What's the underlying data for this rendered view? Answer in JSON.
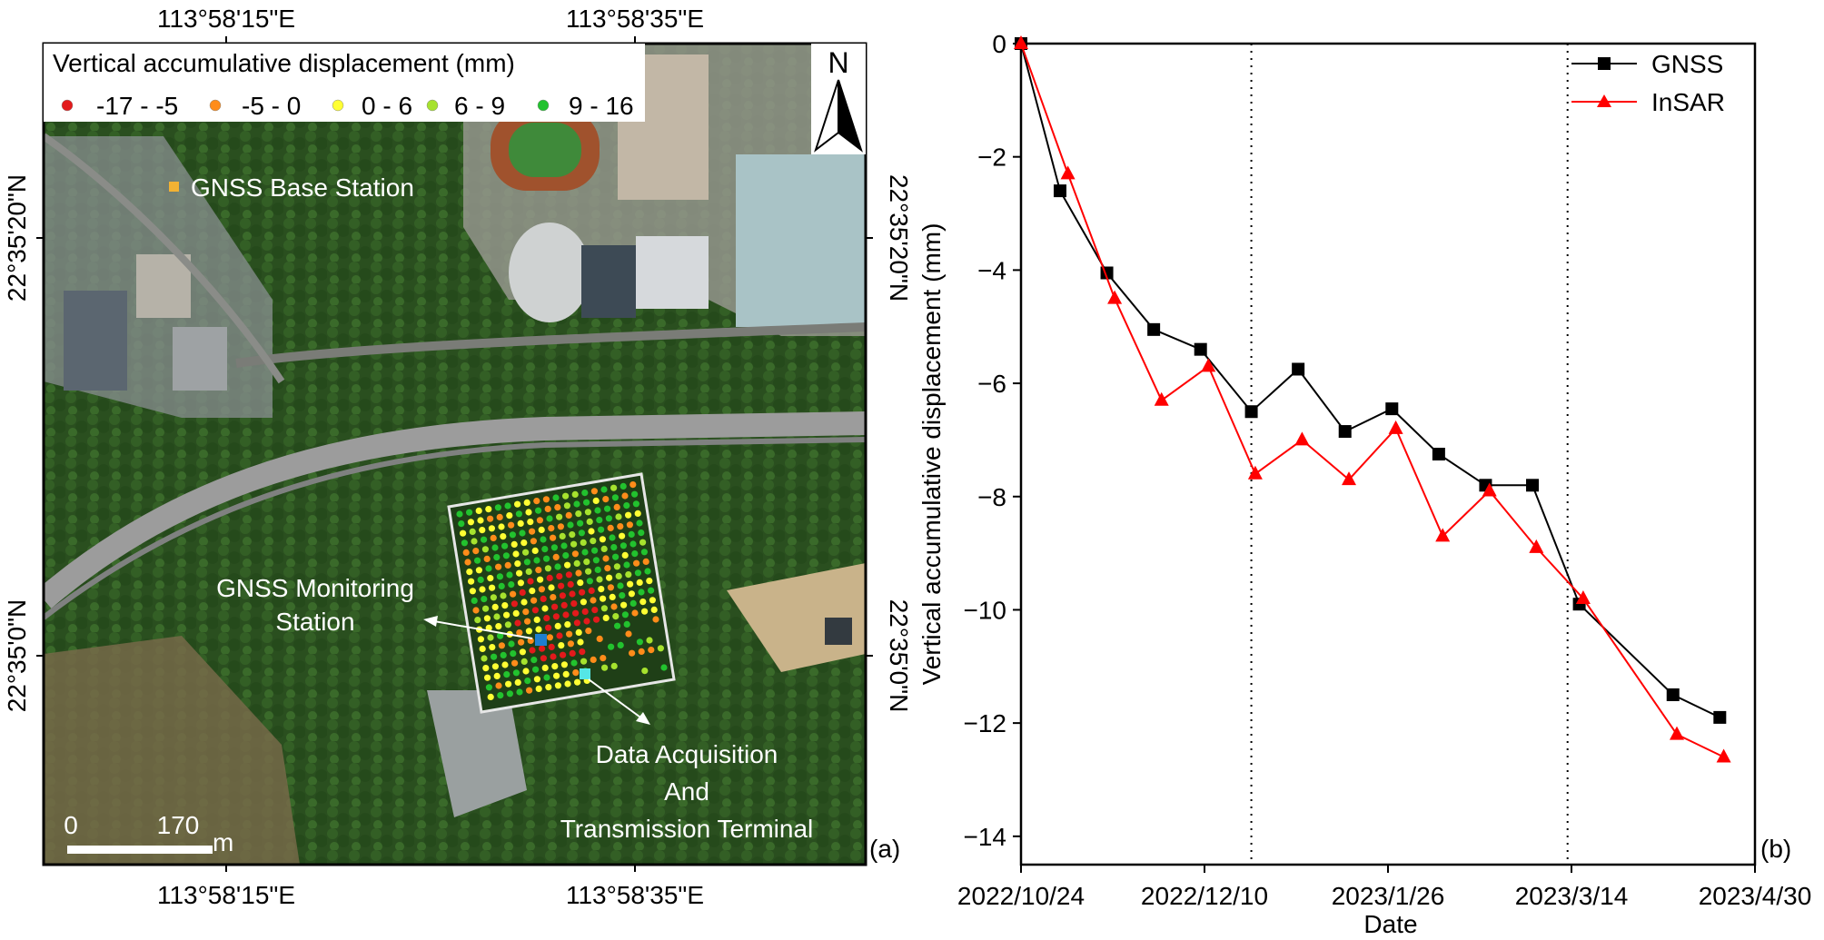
{
  "map": {
    "top_lon_labels": [
      "113°58'15\"E",
      "113°58'35\"E"
    ],
    "bottom_lon_labels": [
      "113°58'15\"E",
      "113°58'35\"E"
    ],
    "left_lat_labels": [
      "22°35'20\"N",
      "22°35'0\"N"
    ],
    "right_lat_labels": [
      "22°35'20\"N",
      "22°35'0\"N"
    ],
    "legend_title": "Vertical accumulative displacement (mm)",
    "legend_items": [
      {
        "label": "-17 - -5",
        "color": "#e31a1c"
      },
      {
        "label": "-5 - 0",
        "color": "#ff8c1a"
      },
      {
        "label": "0 - 6",
        "color": "#ffff33"
      },
      {
        "label": "6 - 9",
        "color": "#a6e22e"
      },
      {
        "label": "9 - 16",
        "color": "#22c22e"
      }
    ],
    "north_label": "N",
    "base_station_label": "GNSS Base Station",
    "monitoring_station_label_1": "GNSS Monitoring",
    "monitoring_station_label_2": "Station",
    "terminal_label_1": "Data Acquisition",
    "terminal_label_2": "And",
    "terminal_label_3": "Transmission Terminal",
    "scale_labels": [
      "0",
      "170"
    ],
    "scale_unit": "m",
    "panel_label": "(a)"
  },
  "chart_data": {
    "type": "line",
    "xlabel": "Date",
    "ylabel": "Vertical accumulative displacement (mm)",
    "xlim": [
      "2022/10/24",
      "2023/4/30"
    ],
    "x_ticks": [
      "2022/10/24",
      "2022/12/10",
      "2023/1/26",
      "2023/3/14",
      "2023/4/30"
    ],
    "ylim": [
      -14.5,
      0
    ],
    "y_ticks": [
      0,
      -2,
      -4,
      -6,
      -8,
      -10,
      -12,
      -14
    ],
    "vlines": [
      "2022/12/22",
      "2023/3/13"
    ],
    "legend_position": "top-right",
    "panel_label": "(b)",
    "series": [
      {
        "name": "GNSS",
        "color": "#000000",
        "marker": "square",
        "points": [
          [
            "2022/10/24",
            0
          ],
          [
            "2022/11/3",
            -2.6
          ],
          [
            "2022/11/15",
            -4.05
          ],
          [
            "2022/11/27",
            -5.05
          ],
          [
            "2022/12/9",
            -5.4
          ],
          [
            "2022/12/22",
            -6.5
          ],
          [
            "2023/1/3",
            -5.75
          ],
          [
            "2023/1/15",
            -6.85
          ],
          [
            "2023/1/27",
            -6.45
          ],
          [
            "2023/2/8",
            -7.25
          ],
          [
            "2023/2/20",
            -7.8
          ],
          [
            "2023/3/4",
            -7.8
          ],
          [
            "2023/3/16",
            -9.9
          ],
          [
            "2023/4/9",
            -11.5
          ],
          [
            "2023/4/21",
            -11.9
          ]
        ]
      },
      {
        "name": "InSAR",
        "color": "#ff0000",
        "marker": "triangle",
        "points": [
          [
            "2022/10/24",
            0
          ],
          [
            "2022/11/5",
            -2.3
          ],
          [
            "2022/11/17",
            -4.5
          ],
          [
            "2022/11/29",
            -6.3
          ],
          [
            "2022/12/11",
            -5.7
          ],
          [
            "2022/12/23",
            -7.6
          ],
          [
            "2023/1/4",
            -7.0
          ],
          [
            "2023/1/16",
            -7.7
          ],
          [
            "2023/1/28",
            -6.8
          ],
          [
            "2023/2/9",
            -8.7
          ],
          [
            "2023/2/21",
            -7.9
          ],
          [
            "2023/3/5",
            -8.9
          ],
          [
            "2023/3/17",
            -9.8
          ],
          [
            "2023/4/10",
            -12.2
          ],
          [
            "2023/4/22",
            -12.6
          ]
        ]
      }
    ]
  }
}
